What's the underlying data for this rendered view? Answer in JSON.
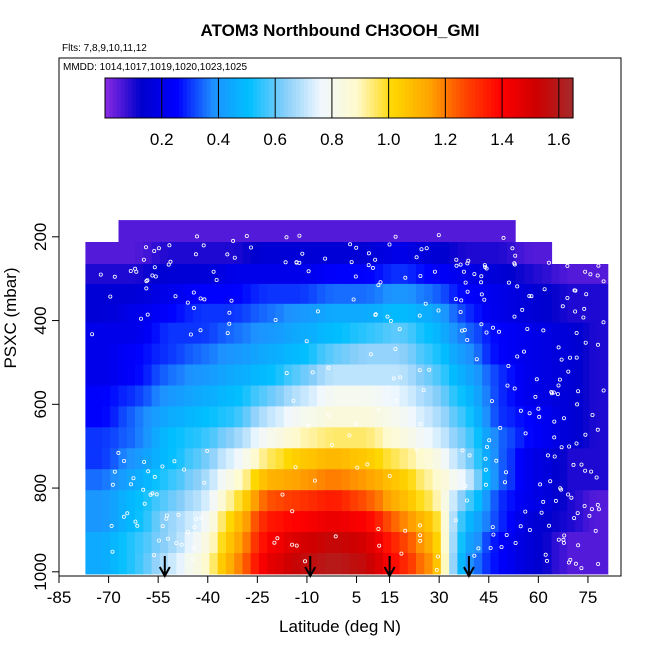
{
  "chart_data": {
    "type": "heatmap",
    "title": "ATOM3 Northbound CH3OOH_GMI",
    "subtitle_flights": "Flts: 7,8,9,10,11,12",
    "subtitle_dates": "MMDD: 1014,1017,1019,1020,1023,1025",
    "xlabel": "Latitude (deg N)",
    "ylabel": "PSXC (mbar)",
    "xlim": [
      -85,
      85
    ],
    "ylim": [
      1010,
      0
    ],
    "x_ticks": [
      "-85",
      "-70",
      "-55",
      "-40",
      "-25",
      "-10",
      "5",
      "15",
      "30",
      "45",
      "60",
      "75"
    ],
    "x_tick_values": [
      -85,
      -70,
      -55,
      -40,
      -25,
      -10,
      5,
      15,
      30,
      45,
      60,
      75
    ],
    "y_ticks": [
      "200",
      "400",
      "600",
      "800",
      "1000"
    ],
    "y_tick_values": [
      200,
      400,
      600,
      800,
      1000
    ],
    "colorbar": {
      "range": [
        0,
        1.65
      ],
      "tick_labels": [
        "0.2",
        "0.4",
        "0.6",
        "0.8",
        "1.0",
        "1.2",
        "1.4",
        "1.6"
      ],
      "tick_values": [
        0.2,
        0.4,
        0.6,
        0.8,
        1.0,
        1.2,
        1.4,
        1.6
      ],
      "colors": [
        "#8a2be2",
        "#0000cd",
        "#0000ff",
        "#1e90ff",
        "#00bfff",
        "#87cefa",
        "#f0f8ff",
        "#fffacd",
        "#ffd700",
        "#ffa500",
        "#ff4500",
        "#ff0000",
        "#cd0000",
        "#a52a2a"
      ]
    },
    "pressure_levels": [
      180,
      245,
      285,
      340,
      380,
      430,
      480,
      530,
      580,
      630,
      680,
      730,
      780,
      830,
      880,
      930,
      980
    ],
    "latitude_columns": [
      {
        "lat": -72,
        "values": [
          null,
          0.05,
          0.1,
          0.15,
          0.15,
          0.2,
          0.2,
          0.2,
          0.25,
          0.25,
          0.3,
          0.3,
          0.35,
          0.4,
          0.4,
          0.45,
          0.45
        ]
      },
      {
        "lat": -62,
        "values": [
          0.05,
          0.05,
          0.1,
          0.15,
          0.2,
          0.2,
          0.25,
          0.25,
          0.3,
          0.35,
          0.35,
          0.4,
          0.45,
          0.5,
          0.5,
          0.55,
          0.55
        ]
      },
      {
        "lat": -52,
        "values": [
          0.05,
          0.1,
          0.15,
          0.2,
          0.25,
          0.3,
          0.3,
          0.35,
          0.4,
          0.45,
          0.5,
          0.5,
          0.55,
          0.6,
          0.65,
          0.65,
          0.7
        ]
      },
      {
        "lat": -42,
        "values": [
          0.05,
          0.1,
          0.15,
          0.25,
          0.3,
          0.3,
          0.35,
          0.4,
          0.45,
          0.5,
          0.55,
          0.6,
          0.65,
          0.7,
          0.75,
          0.8,
          0.85
        ]
      },
      {
        "lat": -32,
        "values": [
          0.05,
          0.1,
          0.2,
          0.25,
          0.3,
          0.35,
          0.4,
          0.45,
          0.5,
          0.55,
          0.65,
          0.75,
          0.85,
          0.95,
          1.05,
          1.1,
          1.15
        ]
      },
      {
        "lat": -22,
        "values": [
          0.05,
          0.15,
          0.2,
          0.3,
          0.35,
          0.4,
          0.45,
          0.5,
          0.6,
          0.7,
          0.8,
          0.95,
          1.1,
          1.25,
          1.35,
          1.4,
          1.45
        ]
      },
      {
        "lat": -12,
        "values": [
          0.05,
          0.15,
          0.2,
          0.3,
          0.4,
          0.45,
          0.5,
          0.6,
          0.7,
          0.8,
          0.9,
          1.05,
          1.15,
          1.3,
          1.4,
          1.5,
          1.55
        ]
      },
      {
        "lat": -2,
        "values": [
          0.05,
          0.15,
          0.25,
          0.35,
          0.45,
          0.5,
          0.6,
          0.7,
          0.8,
          0.85,
          0.95,
          1.1,
          1.2,
          1.35,
          1.45,
          1.55,
          1.6
        ]
      },
      {
        "lat": 8,
        "values": [
          0.05,
          0.15,
          0.25,
          0.35,
          0.45,
          0.55,
          0.65,
          0.7,
          0.8,
          0.85,
          0.95,
          1.05,
          1.15,
          1.25,
          1.4,
          1.5,
          1.55
        ]
      },
      {
        "lat": 18,
        "values": [
          0.05,
          0.2,
          0.3,
          0.4,
          0.5,
          0.6,
          0.65,
          0.7,
          0.75,
          0.8,
          0.85,
          0.95,
          1.05,
          1.1,
          1.2,
          1.3,
          1.35
        ]
      },
      {
        "lat": 28,
        "values": [
          0.05,
          0.15,
          0.25,
          0.35,
          0.45,
          0.5,
          0.55,
          0.6,
          0.65,
          0.7,
          0.75,
          0.85,
          0.9,
          0.95,
          1.05,
          1.1,
          1.15
        ]
      },
      {
        "lat": 38,
        "values": [
          0.05,
          0.1,
          0.2,
          0.25,
          0.3,
          0.35,
          0.4,
          0.45,
          0.5,
          0.55,
          0.6,
          0.65,
          0.75,
          0.6,
          0.5,
          0.45,
          0.4
        ]
      },
      {
        "lat": 48,
        "values": [
          0.05,
          0.1,
          0.15,
          0.2,
          0.2,
          0.25,
          0.25,
          0.3,
          0.3,
          0.3,
          0.35,
          0.35,
          0.35,
          0.3,
          0.3,
          0.25,
          0.25
        ]
      },
      {
        "lat": 58,
        "values": [
          null,
          0.05,
          0.1,
          0.15,
          0.15,
          0.2,
          0.2,
          0.2,
          0.2,
          0.25,
          0.25,
          0.2,
          0.2,
          0.2,
          0.15,
          0.15,
          0.15
        ]
      },
      {
        "lat": 70,
        "values": [
          null,
          null,
          0.05,
          0.1,
          0.1,
          0.15,
          0.15,
          0.15,
          0.15,
          0.15,
          0.15,
          0.1,
          0.1,
          0.1,
          0.1,
          0.05,
          0.05
        ]
      },
      {
        "lat": 77,
        "values": [
          null,
          null,
          0.05,
          0.1,
          0.1,
          0.1,
          0.1,
          0.1,
          0.1,
          0.1,
          0.1,
          0.1,
          0.1,
          0.05,
          0.05,
          0.05,
          0.05
        ]
      }
    ],
    "arrow_latitudes": [
      -53,
      -9,
      15,
      39
    ]
  }
}
